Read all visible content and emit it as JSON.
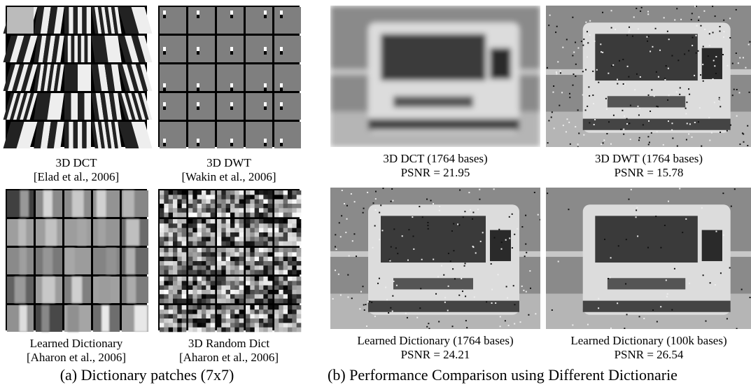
{
  "panel_a": {
    "label": "(a) Dictionary patches (7x7)",
    "items": [
      {
        "name": "3D DCT",
        "citation": "[Elad et al., 2006]"
      },
      {
        "name": "3D DWT",
        "citation": "[Wakin et al., 2006]"
      },
      {
        "name": "Learned Dictionary",
        "citation": "[Aharon et al., 2006]"
      },
      {
        "name": "3D Random Dict",
        "citation": "[Aharon et al., 2006]"
      }
    ]
  },
  "panel_b": {
    "label": "(b) Performance Comparison using Different Dictionarie",
    "items": [
      {
        "name": "3D DCT (1764 bases)",
        "psnr": "PSNR = 21.95"
      },
      {
        "name": "3D DWT (1764 bases)",
        "psnr": "PSNR = 15.78"
      },
      {
        "name": "Learned Dictionary (1764 bases)",
        "psnr": "PSNR = 24.21"
      },
      {
        "name": "Learned Dictionary (100k bases)",
        "psnr": "PSNR = 26.54"
      }
    ]
  }
}
